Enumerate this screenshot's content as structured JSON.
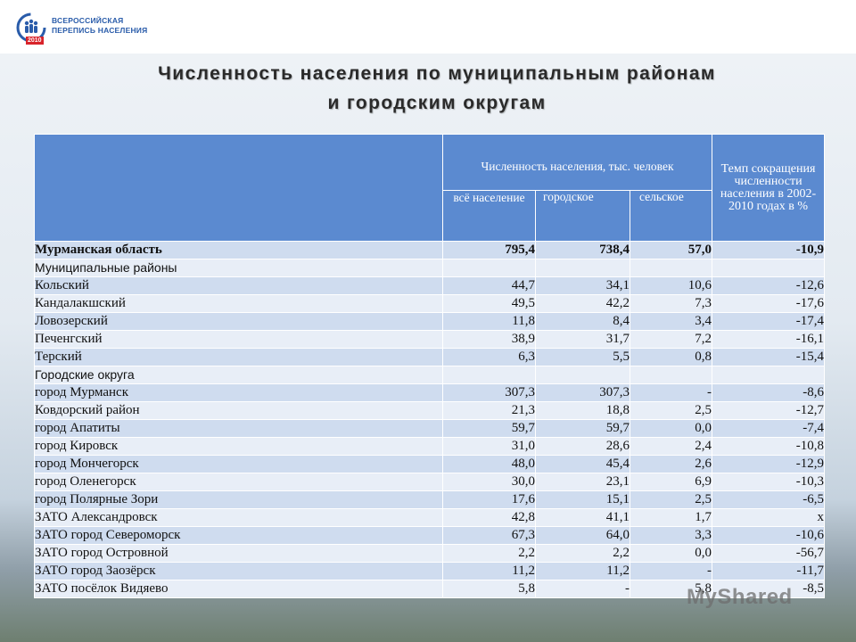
{
  "logo": {
    "line1": "ВСЕРОССИЙСКАЯ",
    "line2": "ПЕРЕПИСЬ НАСЕЛЕНИЯ",
    "year": "2010"
  },
  "title": {
    "line1": "Численность населения по муниципальным районам",
    "line2": "и городским округам"
  },
  "table": {
    "header": {
      "population": "Численность населения, тыс. человек",
      "total": "всё население",
      "urban": "городское",
      "rural": "сельское",
      "decline": "Темп сокращения численности населения в 2002-2010 годах в %"
    },
    "rows": [
      {
        "type": "region",
        "name": "Мурманская область",
        "total": "795,4",
        "urban": "738,4",
        "rural": "57,0",
        "decline": "-10,9"
      },
      {
        "type": "group",
        "name": "Муниципальные районы",
        "total": "",
        "urban": "",
        "rural": "",
        "decline": ""
      },
      {
        "type": "item",
        "name": "Кольский",
        "total": "44,7",
        "urban": "34,1",
        "rural": "10,6",
        "decline": "-12,6"
      },
      {
        "type": "item",
        "name": "Кандалакшский",
        "total": "49,5",
        "urban": "42,2",
        "rural": "7,3",
        "decline": "-17,6"
      },
      {
        "type": "item",
        "name": "Ловозерский",
        "total": "11,8",
        "urban": "8,4",
        "rural": "3,4",
        "decline": "-17,4"
      },
      {
        "type": "item",
        "name": "Печенгский",
        "total": "38,9",
        "urban": "31,7",
        "rural": "7,2",
        "decline": "-16,1"
      },
      {
        "type": "item",
        "name": "Терский",
        "total": "6,3",
        "urban": "5,5",
        "rural": "0,8",
        "decline": "-15,4"
      },
      {
        "type": "group",
        "name": "Городские округа",
        "total": "",
        "urban": "",
        "rural": "",
        "decline": ""
      },
      {
        "type": "item",
        "name": "город Мурманск",
        "total": "307,3",
        "urban": "307,3",
        "rural": "-",
        "decline": "-8,6"
      },
      {
        "type": "item",
        "name": "Ковдорский район",
        "total": "21,3",
        "urban": "18,8",
        "rural": "2,5",
        "decline": "-12,7"
      },
      {
        "type": "item",
        "name": "город Апатиты",
        "total": "59,7",
        "urban": "59,7",
        "rural": "0,0",
        "decline": "-7,4"
      },
      {
        "type": "item",
        "name": "город Кировск",
        "total": "31,0",
        "urban": "28,6",
        "rural": "2,4",
        "decline": "-10,8"
      },
      {
        "type": "item",
        "name": "город Мончегорск",
        "total": "48,0",
        "urban": "45,4",
        "rural": "2,6",
        "decline": "-12,9"
      },
      {
        "type": "item",
        "name": "город Оленегорск",
        "total": "30,0",
        "urban": "23,1",
        "rural": "6,9",
        "decline": "-10,3"
      },
      {
        "type": "item",
        "name": "город Полярные Зори",
        "total": "17,6",
        "urban": "15,1",
        "rural": "2,5",
        "decline": "-6,5"
      },
      {
        "type": "item",
        "name": "ЗАТО Александровск",
        "total": "42,8",
        "urban": "41,1",
        "rural": "1,7",
        "decline": "x"
      },
      {
        "type": "item",
        "name": "ЗАТО город Североморск",
        "total": "67,3",
        "urban": "64,0",
        "rural": "3,3",
        "decline": "-10,6"
      },
      {
        "type": "item",
        "name": "ЗАТО город Островной",
        "total": "2,2",
        "urban": "2,2",
        "rural": "0,0",
        "decline": "-56,7"
      },
      {
        "type": "item",
        "name": "ЗАТО город Заозёрск",
        "total": "11,2",
        "urban": "11,2",
        "rural": "-",
        "decline": "-11,7"
      },
      {
        "type": "item",
        "name": "ЗАТО посёлок Видяево",
        "total": "5,8",
        "urban": "-",
        "rural": "5,8",
        "decline": "-8,5"
      }
    ]
  },
  "watermark": "MyShared"
}
